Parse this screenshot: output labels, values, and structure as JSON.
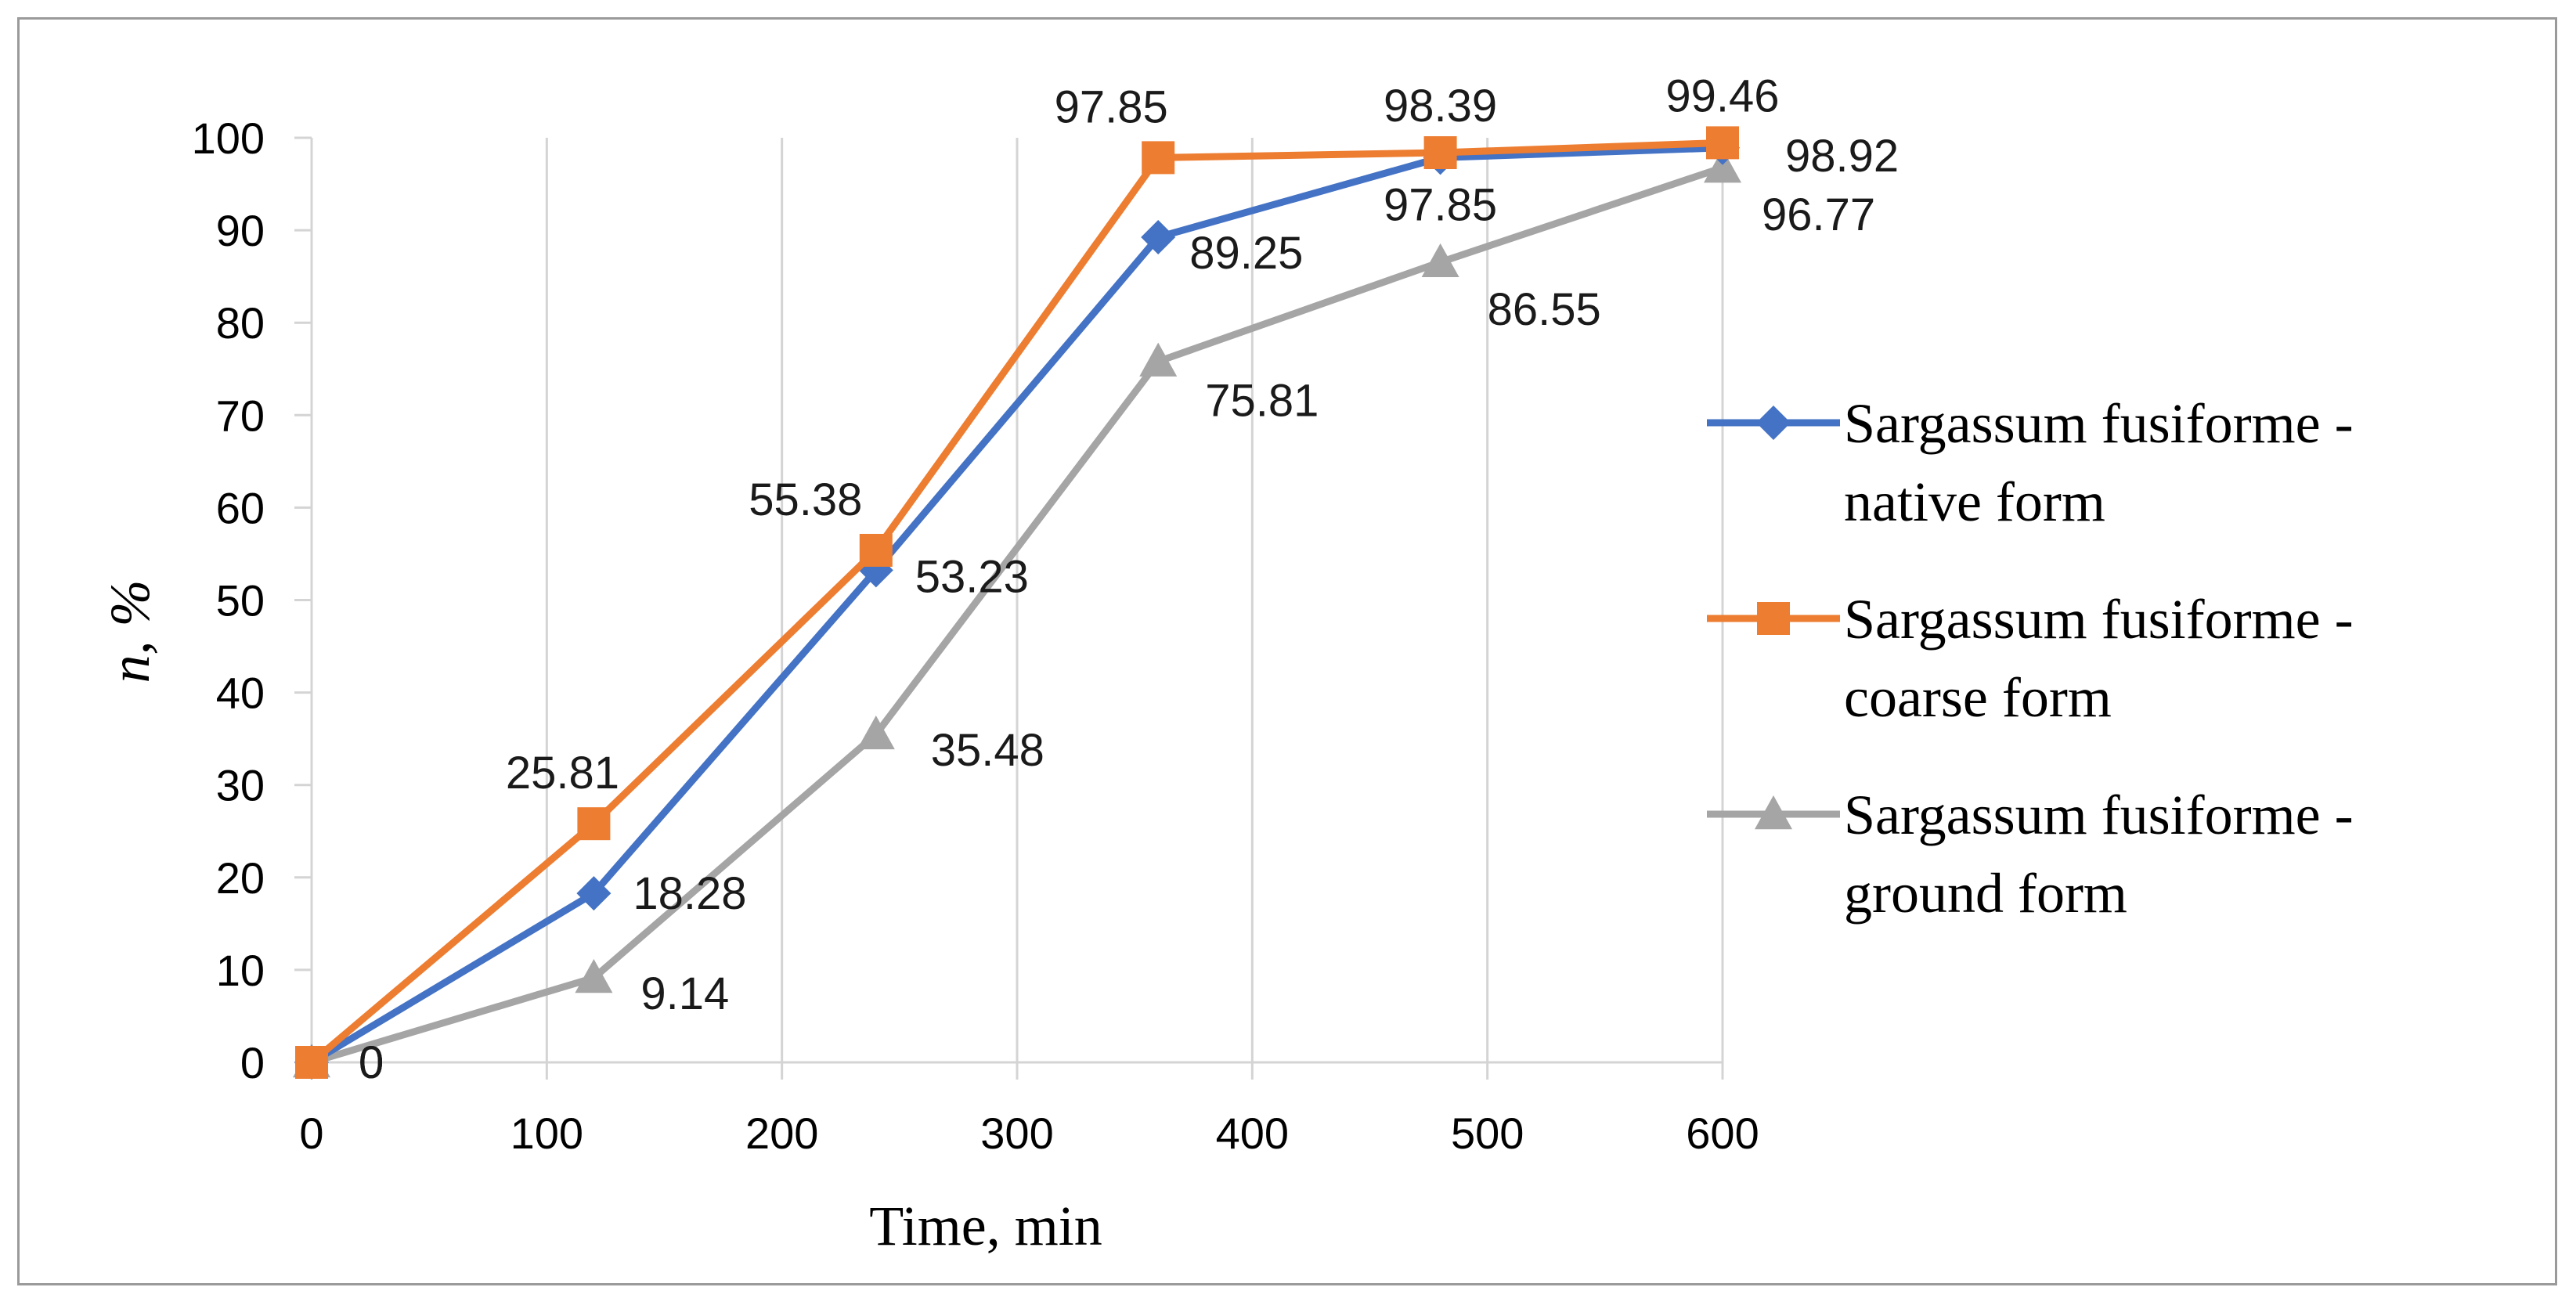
{
  "chart_data": {
    "type": "line",
    "title": "",
    "xlabel": "Time, min",
    "ylabel": "n, %",
    "x": [
      0,
      120,
      240,
      360,
      480,
      600
    ],
    "xlim": [
      0,
      600
    ],
    "ylim": [
      0,
      100
    ],
    "x_ticks": [
      "0",
      "100",
      "200",
      "300",
      "400",
      "500",
      "600"
    ],
    "y_ticks": [
      "0",
      "10",
      "20",
      "30",
      "40",
      "50",
      "60",
      "70",
      "80",
      "90",
      "100"
    ],
    "grid": "vertical",
    "legend_position": "right",
    "series": [
      {
        "name": "Sargassum fusiforme - native form",
        "legend_lines": [
          "Sargassum fusiforme -",
          "native form"
        ],
        "color": "#4472C4",
        "marker": "diamond",
        "values": [
          0,
          18.28,
          53.23,
          89.25,
          97.85,
          98.92
        ],
        "labels": [
          "0",
          "18.28",
          "53.23",
          "89.25",
          "97.85",
          "98.92"
        ]
      },
      {
        "name": "Sargassum fusiforme - coarse form",
        "legend_lines": [
          "Sargassum fusiforme -",
          "coarse form"
        ],
        "color": "#ED7D31",
        "marker": "square",
        "values": [
          0,
          25.81,
          55.38,
          97.85,
          98.39,
          99.46
        ],
        "labels": [
          "0",
          "25.81",
          "55.38",
          "97.85",
          "98.39",
          "99.46"
        ]
      },
      {
        "name": "Sargassum fusiforme - ground form",
        "legend_lines": [
          "Sargassum fusiforme -",
          "ground form"
        ],
        "color": "#A5A5A5",
        "marker": "triangle",
        "values": [
          0,
          9.14,
          35.48,
          75.81,
          86.55,
          96.77
        ],
        "labels": [
          "0",
          "9.14",
          "35.48",
          "75.81",
          "86.55",
          "96.77"
        ]
      }
    ]
  }
}
